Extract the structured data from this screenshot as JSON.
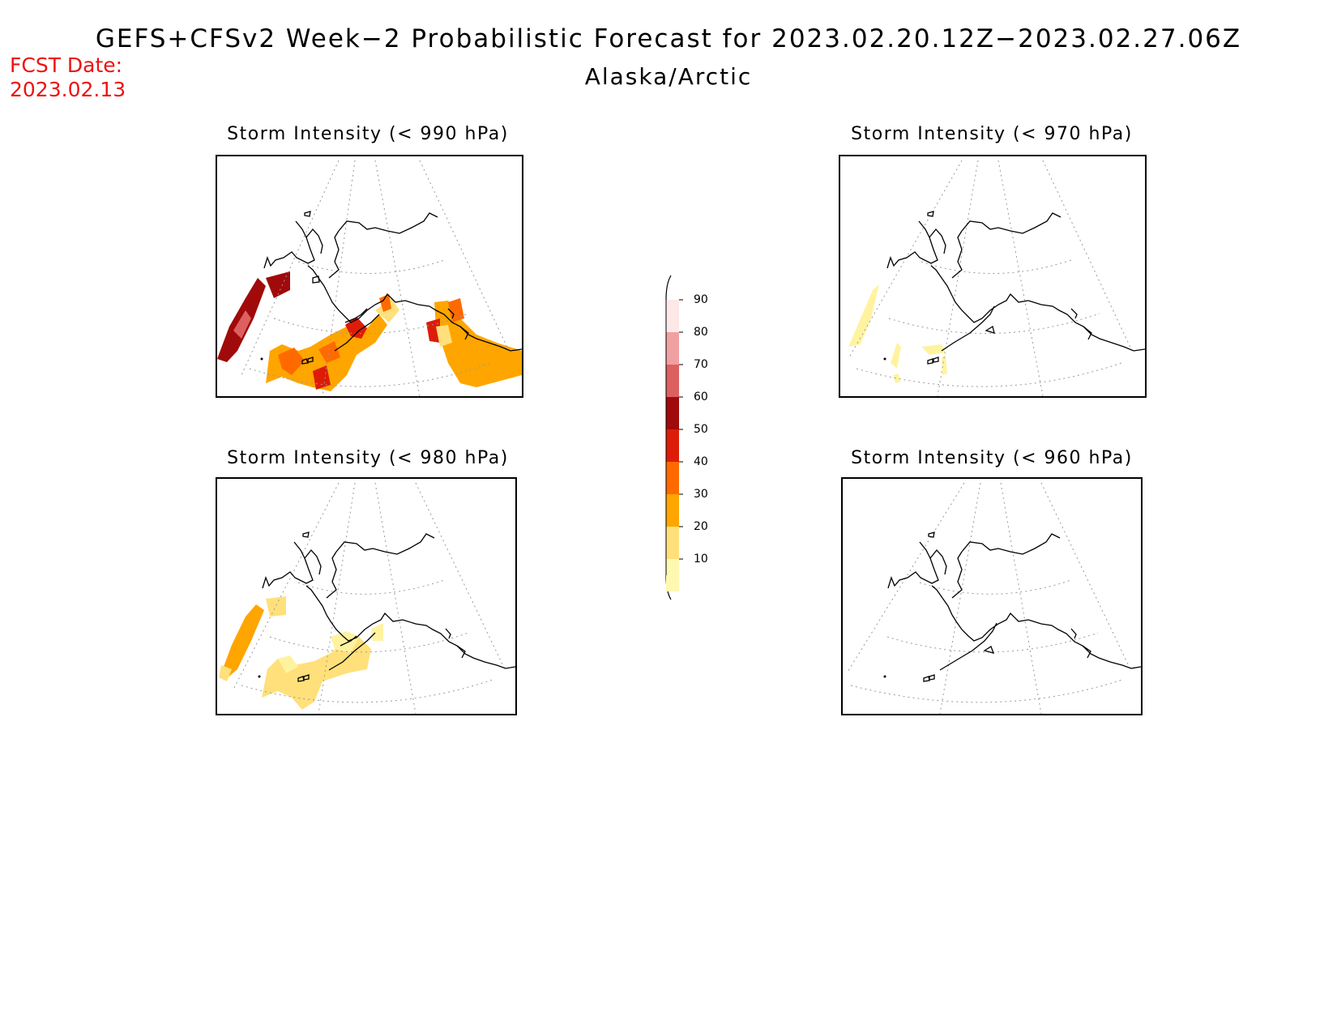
{
  "header": {
    "title": "GEFS+CFSv2 Week−2 Probabilistic Forecast for 2023.02.20.12Z−2023.02.27.06Z",
    "region": "Alaska/Arctic",
    "fcst_label": "FCST Date:",
    "fcst_date": "2023.02.13"
  },
  "panels": [
    {
      "title": "Storm Intensity (< 990 hPa)"
    },
    {
      "title": "Storm Intensity (< 970 hPa)"
    },
    {
      "title": "Storm Intensity (< 980 hPa)"
    },
    {
      "title": "Storm Intensity (< 960 hPa)"
    }
  ],
  "legend": {
    "labels": [
      "90",
      "80",
      "70",
      "60",
      "50",
      "40",
      "30",
      "20",
      "10"
    ],
    "colors": [
      "#fde8e8",
      "#f0a0a0",
      "#dd6060",
      "#a00a0a",
      "#dd1c08",
      "#ff6a00",
      "#ffa500",
      "#ffe07a",
      "#fff8b0"
    ]
  },
  "colors": {
    "fcst_date": "#ee1111",
    "coast": "#000000",
    "grid": "#9a9a9a"
  }
}
